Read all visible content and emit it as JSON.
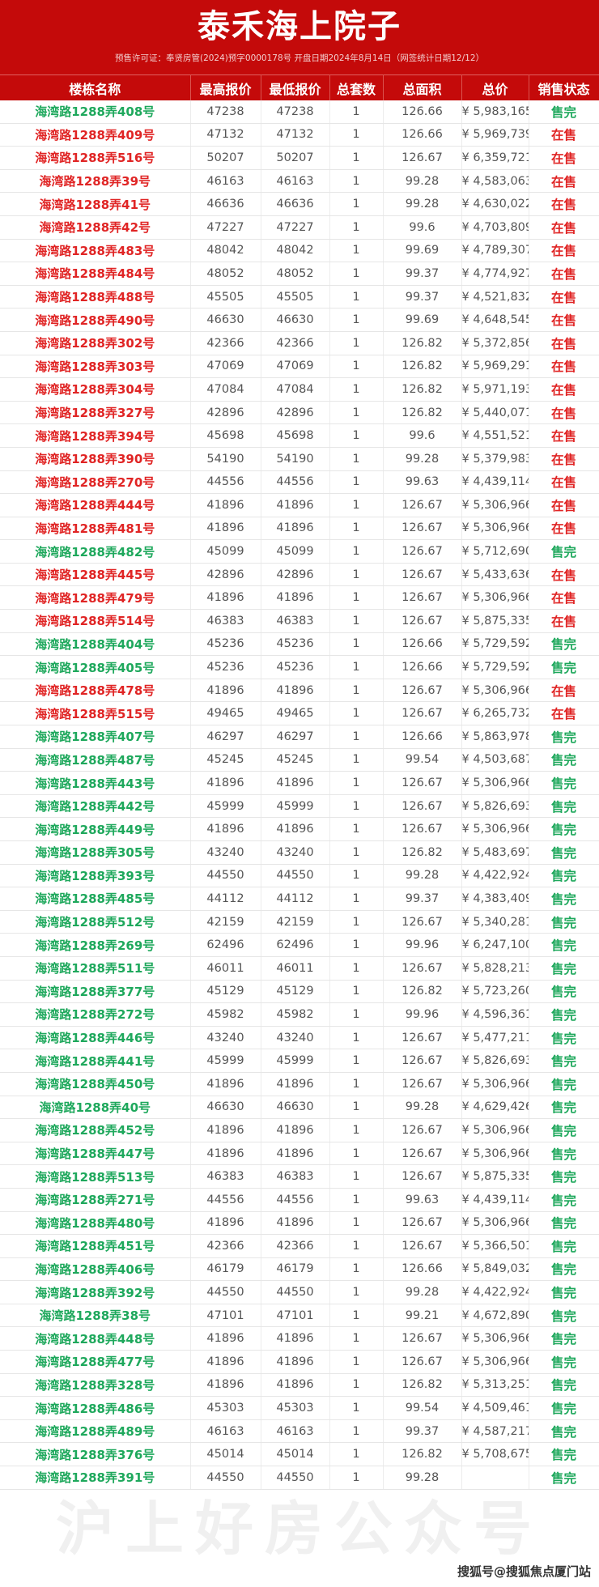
{
  "title": "泰禾海上院子",
  "subtitle": "预售许可证：奉贤房管(2024)预字0000178号 开盘日期2024年8月14日（网签统计日期12/12）",
  "colors": {
    "header_bg": "#c40a0a",
    "on_sale": "#e02424",
    "sold_out": "#1ea85c"
  },
  "columns": [
    "楼栋名称",
    "最高报价",
    "最低报价",
    "总套数",
    "总面积",
    "总价",
    "销售状态"
  ],
  "rows": [
    [
      "海湾路1288弄408号",
      "47238",
      "47238",
      "1",
      "126.66",
      "¥ 5,983,165",
      "售完"
    ],
    [
      "海湾路1288弄409号",
      "47132",
      "47132",
      "1",
      "126.66",
      "¥ 5,969,739",
      "在售"
    ],
    [
      "海湾路1288弄516号",
      "50207",
      "50207",
      "1",
      "126.67",
      "¥ 6,359,721",
      "在售"
    ],
    [
      "海湾路1288弄39号",
      "46163",
      "46163",
      "1",
      "99.28",
      "¥ 4,583,063",
      "在售"
    ],
    [
      "海湾路1288弄41号",
      "46636",
      "46636",
      "1",
      "99.28",
      "¥ 4,630,022",
      "在售"
    ],
    [
      "海湾路1288弄42号",
      "47227",
      "47227",
      "1",
      "99.6",
      "¥ 4,703,809",
      "在售"
    ],
    [
      "海湾路1288弄483号",
      "48042",
      "48042",
      "1",
      "99.69",
      "¥ 4,789,307",
      "在售"
    ],
    [
      "海湾路1288弄484号",
      "48052",
      "48052",
      "1",
      "99.37",
      "¥ 4,774,927",
      "在售"
    ],
    [
      "海湾路1288弄488号",
      "45505",
      "45505",
      "1",
      "99.37",
      "¥ 4,521,832",
      "在售"
    ],
    [
      "海湾路1288弄490号",
      "46630",
      "46630",
      "1",
      "99.69",
      "¥ 4,648,545",
      "在售"
    ],
    [
      "海湾路1288弄302号",
      "42366",
      "42366",
      "1",
      "126.82",
      "¥ 5,372,856",
      "在售"
    ],
    [
      "海湾路1288弄303号",
      "47069",
      "47069",
      "1",
      "126.82",
      "¥ 5,969,291",
      "在售"
    ],
    [
      "海湾路1288弄304号",
      "47084",
      "47084",
      "1",
      "126.82",
      "¥ 5,971,193",
      "在售"
    ],
    [
      "海湾路1288弄327号",
      "42896",
      "42896",
      "1",
      "126.82",
      "¥ 5,440,071",
      "在售"
    ],
    [
      "海湾路1288弄394号",
      "45698",
      "45698",
      "1",
      "99.6",
      "¥ 4,551,521",
      "在售"
    ],
    [
      "海湾路1288弄390号",
      "54190",
      "54190",
      "1",
      "99.28",
      "¥ 5,379,983",
      "在售"
    ],
    [
      "海湾路1288弄270号",
      "44556",
      "44556",
      "1",
      "99.63",
      "¥ 4,439,114",
      "在售"
    ],
    [
      "海湾路1288弄444号",
      "41896",
      "41896",
      "1",
      "126.67",
      "¥ 5,306,966",
      "在售"
    ],
    [
      "海湾路1288弄481号",
      "41896",
      "41896",
      "1",
      "126.67",
      "¥ 5,306,966",
      "在售"
    ],
    [
      "海湾路1288弄482号",
      "45099",
      "45099",
      "1",
      "126.67",
      "¥ 5,712,690",
      "售完"
    ],
    [
      "海湾路1288弄445号",
      "42896",
      "42896",
      "1",
      "126.67",
      "¥ 5,433,636",
      "在售"
    ],
    [
      "海湾路1288弄479号",
      "41896",
      "41896",
      "1",
      "126.67",
      "¥ 5,306,966",
      "在售"
    ],
    [
      "海湾路1288弄514号",
      "46383",
      "46383",
      "1",
      "126.67",
      "¥ 5,875,335",
      "在售"
    ],
    [
      "海湾路1288弄404号",
      "45236",
      "45236",
      "1",
      "126.66",
      "¥ 5,729,592",
      "售完"
    ],
    [
      "海湾路1288弄405号",
      "45236",
      "45236",
      "1",
      "126.66",
      "¥ 5,729,592",
      "售完"
    ],
    [
      "海湾路1288弄478号",
      "41896",
      "41896",
      "1",
      "126.67",
      "¥ 5,306,966",
      "在售"
    ],
    [
      "海湾路1288弄515号",
      "49465",
      "49465",
      "1",
      "126.67",
      "¥ 6,265,732",
      "在售"
    ],
    [
      "海湾路1288弄407号",
      "46297",
      "46297",
      "1",
      "126.66",
      "¥ 5,863,978",
      "售完"
    ],
    [
      "海湾路1288弄487号",
      "45245",
      "45245",
      "1",
      "99.54",
      "¥ 4,503,687",
      "售完"
    ],
    [
      "海湾路1288弄443号",
      "41896",
      "41896",
      "1",
      "126.67",
      "¥ 5,306,966",
      "售完"
    ],
    [
      "海湾路1288弄442号",
      "45999",
      "45999",
      "1",
      "126.67",
      "¥ 5,826,693",
      "售完"
    ],
    [
      "海湾路1288弄449号",
      "41896",
      "41896",
      "1",
      "126.67",
      "¥ 5,306,966",
      "售完"
    ],
    [
      "海湾路1288弄305号",
      "43240",
      "43240",
      "1",
      "126.82",
      "¥ 5,483,697",
      "售完"
    ],
    [
      "海湾路1288弄393号",
      "44550",
      "44550",
      "1",
      "99.28",
      "¥ 4,422,924",
      "售完"
    ],
    [
      "海湾路1288弄485号",
      "44112",
      "44112",
      "1",
      "99.37",
      "¥ 4,383,409",
      "售完"
    ],
    [
      "海湾路1288弄512号",
      "42159",
      "42159",
      "1",
      "126.67",
      "¥ 5,340,281",
      "售完"
    ],
    [
      "海湾路1288弄269号",
      "62496",
      "62496",
      "1",
      "99.96",
      "¥ 6,247,100",
      "售完"
    ],
    [
      "海湾路1288弄511号",
      "46011",
      "46011",
      "1",
      "126.67",
      "¥ 5,828,213",
      "售完"
    ],
    [
      "海湾路1288弄377号",
      "45129",
      "45129",
      "1",
      "126.82",
      "¥ 5,723,260",
      "售完"
    ],
    [
      "海湾路1288弄272号",
      "45982",
      "45982",
      "1",
      "99.96",
      "¥ 4,596,361",
      "售完"
    ],
    [
      "海湾路1288弄446号",
      "43240",
      "43240",
      "1",
      "126.67",
      "¥ 5,477,211",
      "售完"
    ],
    [
      "海湾路1288弄441号",
      "45999",
      "45999",
      "1",
      "126.67",
      "¥ 5,826,693",
      "售完"
    ],
    [
      "海湾路1288弄450号",
      "41896",
      "41896",
      "1",
      "126.67",
      "¥ 5,306,966",
      "售完"
    ],
    [
      "海湾路1288弄40号",
      "46630",
      "46630",
      "1",
      "99.28",
      "¥ 4,629,426",
      "售完"
    ],
    [
      "海湾路1288弄452号",
      "41896",
      "41896",
      "1",
      "126.67",
      "¥ 5,306,966",
      "售完"
    ],
    [
      "海湾路1288弄447号",
      "41896",
      "41896",
      "1",
      "126.67",
      "¥ 5,306,966",
      "售完"
    ],
    [
      "海湾路1288弄513号",
      "46383",
      "46383",
      "1",
      "126.67",
      "¥ 5,875,335",
      "售完"
    ],
    [
      "海湾路1288弄271号",
      "44556",
      "44556",
      "1",
      "99.63",
      "¥ 4,439,114",
      "售完"
    ],
    [
      "海湾路1288弄480号",
      "41896",
      "41896",
      "1",
      "126.67",
      "¥ 5,306,966",
      "售完"
    ],
    [
      "海湾路1288弄451号",
      "42366",
      "42366",
      "1",
      "126.67",
      "¥ 5,366,501",
      "售完"
    ],
    [
      "海湾路1288弄406号",
      "46179",
      "46179",
      "1",
      "126.66",
      "¥ 5,849,032",
      "售完"
    ],
    [
      "海湾路1288弄392号",
      "44550",
      "44550",
      "1",
      "99.28",
      "¥ 4,422,924",
      "售完"
    ],
    [
      "海湾路1288弄38号",
      "47101",
      "47101",
      "1",
      "99.21",
      "¥ 4,672,890",
      "售完"
    ],
    [
      "海湾路1288弄448号",
      "41896",
      "41896",
      "1",
      "126.67",
      "¥ 5,306,966",
      "售完"
    ],
    [
      "海湾路1288弄477号",
      "41896",
      "41896",
      "1",
      "126.67",
      "¥ 5,306,966",
      "售完"
    ],
    [
      "海湾路1288弄328号",
      "41896",
      "41896",
      "1",
      "126.82",
      "¥ 5,313,251",
      "售完"
    ],
    [
      "海湾路1288弄486号",
      "45303",
      "45303",
      "1",
      "99.54",
      "¥ 4,509,461",
      "售完"
    ],
    [
      "海湾路1288弄489号",
      "46163",
      "46163",
      "1",
      "99.37",
      "¥ 4,587,217",
      "售完"
    ],
    [
      "海湾路1288弄376号",
      "45014",
      "45014",
      "1",
      "126.82",
      "¥ 5,708,675",
      "售完"
    ],
    [
      "海湾路1288弄391号",
      "44550",
      "44550",
      "1",
      "99.28",
      "",
      "售完"
    ]
  ],
  "watermarks": {
    "center": "沪上好房公众号",
    "corner": "搜狐号@搜狐焦点厦门站"
  }
}
